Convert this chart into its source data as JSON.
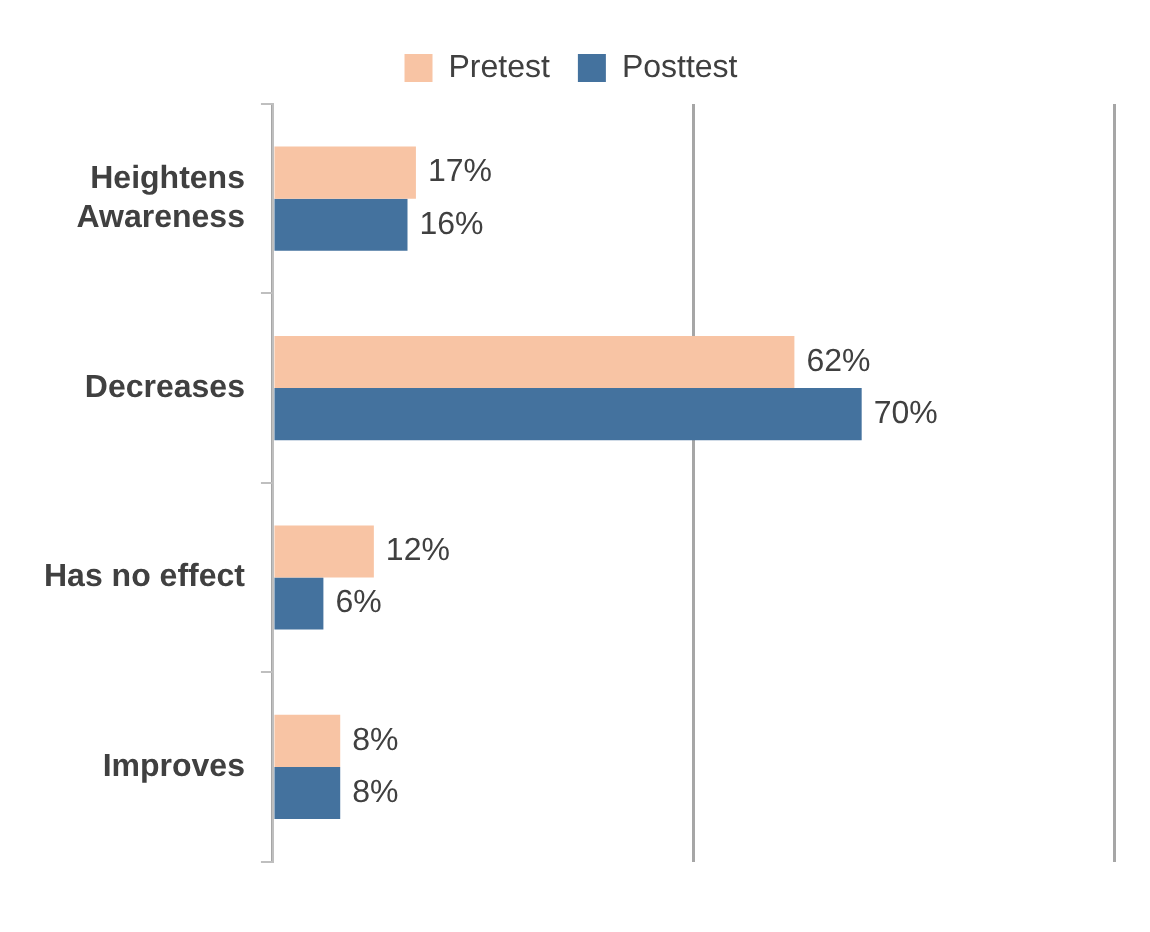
{
  "chart_data": {
    "type": "bar",
    "orientation": "horizontal",
    "categories": [
      "Heightens Awareness",
      "Decreases",
      "Has no effect",
      "Improves"
    ],
    "series": [
      {
        "name": "Pretest",
        "color": "#f8c4a4",
        "values": [
          17,
          62,
          12,
          8
        ],
        "value_labels": [
          "17%",
          "62%",
          "12%",
          "8%"
        ]
      },
      {
        "name": "Posttest",
        "color": "#44729e",
        "values": [
          16,
          70,
          6,
          8
        ],
        "value_labels": [
          "16%",
          "70%",
          "6%",
          "8%"
        ]
      }
    ],
    "xlim": [
      0,
      100
    ],
    "xticks": [
      {
        "value": 0,
        "label": null
      },
      {
        "value": 50,
        "label": null
      },
      {
        "value": 100,
        "label": null
      }
    ],
    "grid": "x",
    "legend": "top",
    "tick_labels": "y"
  }
}
